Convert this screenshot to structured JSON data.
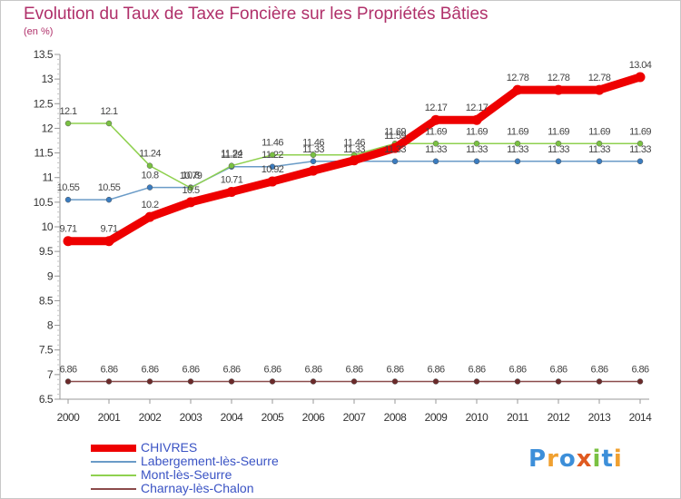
{
  "title": "Evolution du Taux de Taxe Foncière sur les Propriétés Bâties",
  "unit_label": "(en %)",
  "logo": {
    "text": "Proxiti",
    "letters": [
      "P",
      "r",
      "o",
      "x",
      "i",
      "t",
      "i"
    ],
    "colors": [
      "#3d8fd9",
      "#f0a030",
      "#3d8fd9",
      "#e05a20",
      "#7ac142",
      "#3d8fd9",
      "#f0a030"
    ]
  },
  "chart_data": {
    "type": "line",
    "title": "Evolution du Taux de Taxe Foncière sur les Propriétés Bâties",
    "ylabel": "(en %)",
    "xlabel": "",
    "ylim": [
      6.5,
      13.5
    ],
    "yticks": [
      "6.5",
      "7",
      "7.5",
      "8",
      "8.5",
      "9",
      "9.5",
      "10",
      "10.5",
      "11",
      "11.5",
      "12",
      "12.5",
      "13",
      "13.5"
    ],
    "categories": [
      "2000",
      "2001",
      "2002",
      "2003",
      "2004",
      "2005",
      "2006",
      "2007",
      "2008",
      "2009",
      "2010",
      "2011",
      "2012",
      "2013",
      "2014"
    ],
    "series": [
      {
        "name": "CHIVRES",
        "color": "#ee0000",
        "width": 9,
        "values": [
          9.71,
          9.71,
          10.2,
          10.5,
          10.71,
          10.92,
          11.14,
          11.35,
          11.6,
          12.17,
          12.17,
          12.78,
          12.78,
          12.78,
          13.04
        ],
        "labels": [
          "9.71",
          "9.71",
          "10.2",
          "10.5",
          "10.71",
          "10.92",
          "",
          "",
          "11.59",
          "12.17",
          "12.17",
          "12.78",
          "12.78",
          "12.78",
          "13.04"
        ]
      },
      {
        "name": "Labergement-lès-Seurre",
        "color": "#6a9bc7",
        "marker": "#3a7cc0",
        "width": 1.5,
        "values": [
          10.55,
          10.55,
          10.8,
          10.8,
          11.22,
          11.22,
          11.33,
          11.33,
          11.33,
          11.33,
          11.33,
          11.33,
          11.33,
          11.33,
          11.33
        ],
        "labels": [
          "10.55",
          "10.55",
          "10.8",
          "10.8",
          "11.22",
          "11.22",
          "11.33",
          "11.33",
          "11.33",
          "11.33",
          "11.33",
          "11.33",
          "11.33",
          "11.33",
          "11.33"
        ]
      },
      {
        "name": "Mont-lès-Seurre",
        "color": "#8fd14f",
        "marker": "#7ac142",
        "width": 1.5,
        "values": [
          12.1,
          12.1,
          11.24,
          10.79,
          11.24,
          11.46,
          11.46,
          11.46,
          11.69,
          11.69,
          11.69,
          11.69,
          11.69,
          11.69,
          11.69
        ],
        "labels": [
          "12.1",
          "12.1",
          "11.24",
          "10.79",
          "11.24",
          "11.46",
          "11.46",
          "11.46",
          "11.69",
          "11.69",
          "11.69",
          "11.69",
          "11.69",
          "11.69",
          "11.69"
        ]
      },
      {
        "name": "Charnay-lès-Chalon",
        "color": "#8b4b4b",
        "marker": "#6b2a2a",
        "width": 1.5,
        "values": [
          6.86,
          6.86,
          6.86,
          6.86,
          6.86,
          6.86,
          6.86,
          6.86,
          6.86,
          6.86,
          6.86,
          6.86,
          6.86,
          6.86,
          6.86
        ],
        "labels": [
          "6.86",
          "6.86",
          "6.86",
          "6.86",
          "6.86",
          "6.86",
          "6.86",
          "6.86",
          "6.86",
          "6.86",
          "6.86",
          "6.86",
          "6.86",
          "6.86",
          "6.86"
        ]
      }
    ],
    "grid": false,
    "legend": "bottom-left"
  }
}
